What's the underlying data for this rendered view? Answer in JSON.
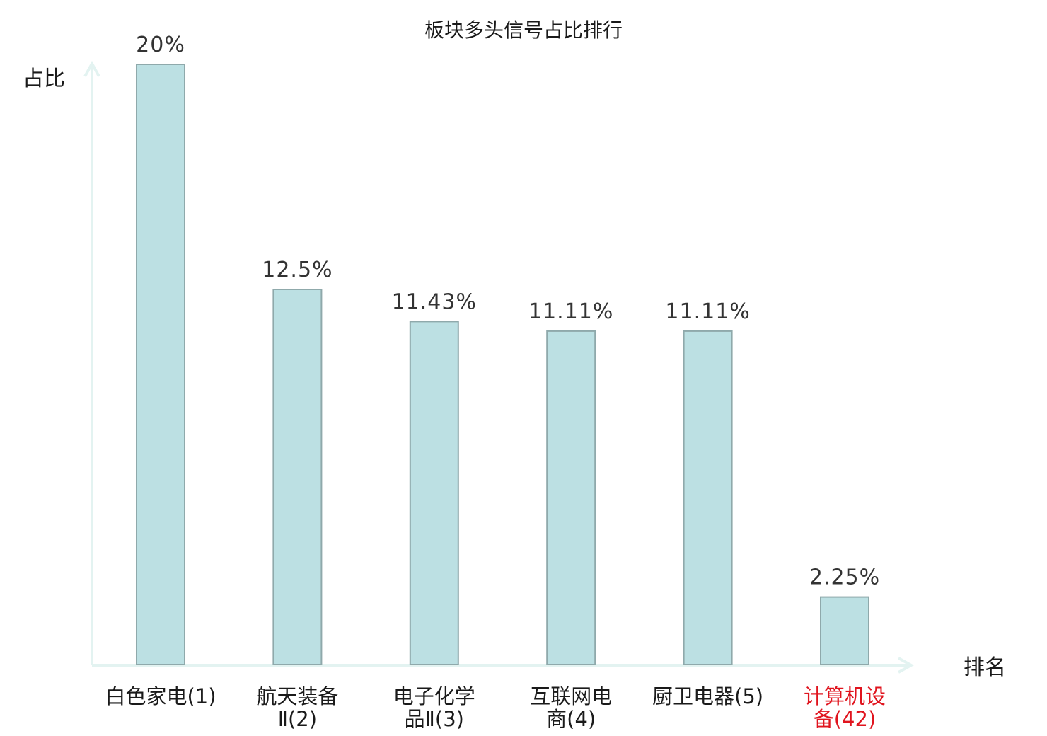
{
  "chart_data": {
    "type": "bar",
    "title": "板块多头信号占比排行",
    "ylabel": "占比",
    "xlabel": "排名",
    "ylim": [
      0,
      20
    ],
    "grid": false,
    "legend": "none",
    "categories": [
      {
        "lines": [
          "白色家电(1)"
        ],
        "highlight": false
      },
      {
        "lines": [
          "航天装备",
          "Ⅱ(2)"
        ],
        "highlight": false
      },
      {
        "lines": [
          "电子化学",
          "品Ⅱ(3)"
        ],
        "highlight": false
      },
      {
        "lines": [
          "互联网电",
          "商(4)"
        ],
        "highlight": false
      },
      {
        "lines": [
          "厨卫电器(5)"
        ],
        "highlight": false
      },
      {
        "lines": [
          "计算机设",
          "备(42)"
        ],
        "highlight": true
      }
    ],
    "values": [
      20,
      12.5,
      11.43,
      11.11,
      11.11,
      2.25
    ],
    "value_labels": [
      "20%",
      "12.5%",
      "11.43%",
      "11.11%",
      "11.11%",
      "2.25%"
    ],
    "colors": {
      "bar_fill": "#bce0e3",
      "bar_stroke": "#8fa9ab",
      "axis": "#e3f3f1",
      "label_normal": "#1a1a1a",
      "label_highlight": "#e0141e"
    }
  }
}
